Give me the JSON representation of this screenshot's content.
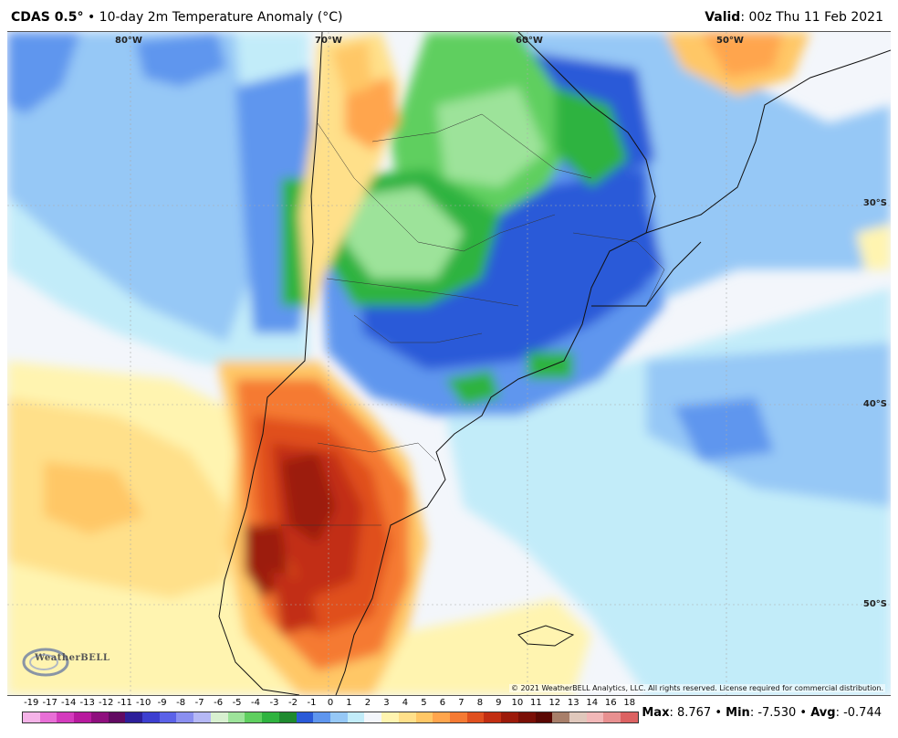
{
  "header": {
    "model": "CDAS 0.5",
    "degree_sign": "°",
    "separator": "•",
    "product": "10-day 2m Temperature Anomaly (",
    "unit": "°C)",
    "valid_label": "Valid",
    "valid_time": ": 00z Thu 11 Feb 2021"
  },
  "map": {
    "longitude_labels": [
      "80°W",
      "70°W",
      "60°W",
      "50°W"
    ],
    "latitude_labels": [
      "30°S",
      "40°S",
      "50°S"
    ],
    "copyright": "© 2021 WeatherBELL Analytics, LLC. All rights reserved. License required for commercial distribution.",
    "logo_text": "WeatherBELL",
    "logo_icon": "weatherbell-swirl-icon"
  },
  "colorbar": {
    "labels": [
      "-19",
      "-17",
      "-14",
      "-13",
      "-12",
      "-11",
      "-10",
      "-9",
      "-8",
      "-7",
      "-6",
      "-5",
      "-4",
      "-3",
      "-2",
      "-1",
      "0",
      "1",
      "2",
      "3",
      "4",
      "5",
      "6",
      "7",
      "8",
      "9",
      "10",
      "11",
      "12",
      "13",
      "14",
      "16",
      "18"
    ],
    "colors": [
      "#f5b3e8",
      "#e86fd6",
      "#d43bbd",
      "#b81a9e",
      "#8f0f7e",
      "#620a62",
      "#2d1f9a",
      "#3d3fd0",
      "#5b62e8",
      "#8a8ff0",
      "#b5b8f5",
      "#d8f0d0",
      "#9de39a",
      "#5fcf5f",
      "#2fb33f",
      "#1f8a2f",
      "#2a5ad8",
      "#5f96ee",
      "#96c8f6",
      "#c2ecf9",
      "#f3f6fb",
      "#fff4b0",
      "#ffe08a",
      "#ffc766",
      "#ffa54d",
      "#f57a33",
      "#e0501f",
      "#c22e12",
      "#9c1a0a",
      "#7a0f06",
      "#5a0803",
      "#a87f6a",
      "#e0c8bc"
    ],
    "extra_colors": [
      "#f2b8b8",
      "#e89090",
      "#dc6262"
    ]
  },
  "stats": {
    "max_label": "Max",
    "max_value": ": 8.767",
    "min_label": "Min",
    "min_value": ": -7.530",
    "avg_label": "Avg",
    "avg_value": ": -0.744",
    "separator": "•"
  }
}
